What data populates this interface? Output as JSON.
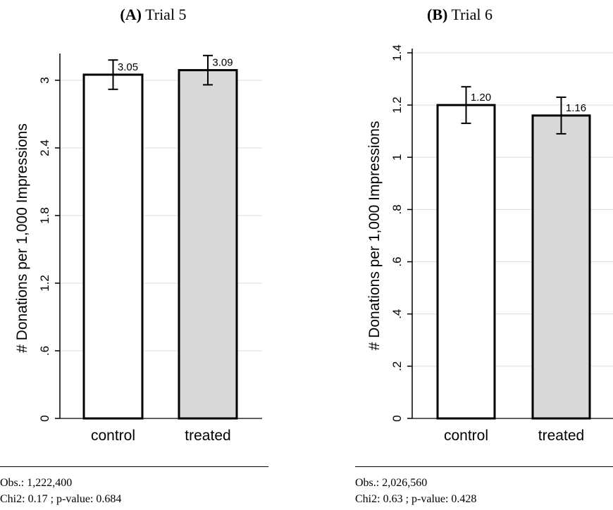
{
  "panels": [
    {
      "letter": "(A)",
      "title_rest": " Trial 5",
      "footnote": {
        "obs": "Obs.: 1,222,400",
        "stats": "Chi2: 0.17 ; p-value: 0.684"
      }
    },
    {
      "letter": "(B)",
      "title_rest": " Trial 6",
      "footnote": {
        "obs": "Obs.: 2,026,560",
        "stats": "Chi2: 0.63 ; p-value: 0.428"
      }
    }
  ],
  "chart_data": [
    {
      "type": "bar",
      "title": "(A) Trial 5",
      "ylabel": "# Donations per 1,000 Impressions",
      "categories": [
        "control",
        "treated"
      ],
      "values": [
        3.05,
        3.09
      ],
      "data_labels": [
        "3.05",
        "3.09"
      ],
      "error_bars": [
        [
          2.92,
          3.18
        ],
        [
          2.96,
          3.22
        ]
      ],
      "bar_colors": [
        "#ffffff",
        "#d9d9d9"
      ],
      "ylim": [
        0,
        3.2
      ],
      "yticks": [
        0,
        0.6,
        1.2,
        1.8,
        2.4,
        3
      ],
      "ytick_labels": [
        "0",
        ".6",
        "1.2",
        "1.8",
        "2.4",
        "3"
      ],
      "grid": true,
      "legend": "none"
    },
    {
      "type": "bar",
      "title": "(B) Trial 6",
      "ylabel": "# Donations per 1,000 Impressions",
      "categories": [
        "control",
        "treated"
      ],
      "values": [
        1.2,
        1.16
      ],
      "data_labels": [
        "1.20",
        "1.16"
      ],
      "error_bars": [
        [
          1.13,
          1.27
        ],
        [
          1.09,
          1.23
        ]
      ],
      "bar_colors": [
        "#ffffff",
        "#d9d9d9"
      ],
      "ylim": [
        0,
        1.4
      ],
      "yticks": [
        0,
        0.2,
        0.4,
        0.6,
        0.8,
        1.0,
        1.2,
        1.4
      ],
      "ytick_labels": [
        "0",
        ".2",
        ".4",
        ".6",
        ".8",
        "1",
        "1.2",
        "1.4"
      ],
      "grid": true,
      "legend": "none"
    }
  ]
}
